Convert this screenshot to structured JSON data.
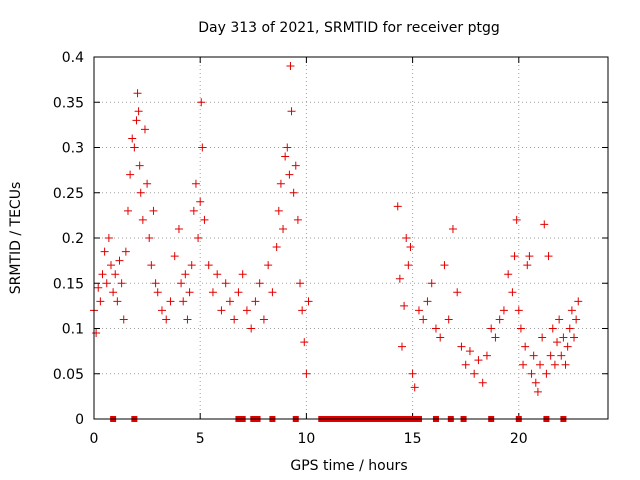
{
  "chart_data": {
    "type": "scatter",
    "title": "Day 313 of 2021, SRMTID for receiver ptgg",
    "xlabel": "GPS time / hours",
    "ylabel": "SRMTID / TECUs",
    "xlim": [
      0,
      24.2
    ],
    "ylim": [
      0,
      0.4
    ],
    "xticks": [
      0,
      5,
      10,
      15,
      20
    ],
    "xtick_labels": [
      "0",
      "5",
      "10",
      "15",
      "20"
    ],
    "yticks": [
      0,
      0.05,
      0.1,
      0.15,
      0.2,
      0.25,
      0.3,
      0.35,
      0.4
    ],
    "ytick_labels": [
      "0",
      "0.05",
      "0.1",
      "0.15",
      "0.2",
      "0.25",
      "0.3",
      "0.35",
      "0.4"
    ],
    "grid": true,
    "marker": "+",
    "color": "#e00000",
    "series": [
      {
        "name": "SRMTID",
        "x": [
          0.0,
          0.1,
          0.2,
          0.3,
          0.4,
          0.5,
          0.6,
          0.7,
          0.8,
          0.9,
          1.0,
          1.1,
          1.2,
          1.3,
          1.4,
          1.5,
          1.6,
          1.7,
          1.8,
          1.9,
          2.0,
          2.05,
          2.1,
          2.15,
          2.2,
          2.3,
          2.4,
          2.5,
          2.6,
          2.7,
          2.8,
          2.9,
          3.0,
          3.2,
          3.4,
          3.6,
          3.8,
          4.0,
          4.1,
          4.2,
          4.3,
          4.4,
          4.5,
          4.6,
          4.7,
          4.8,
          4.9,
          5.0,
          5.05,
          5.1,
          5.2,
          5.4,
          5.6,
          5.8,
          6.0,
          6.2,
          6.4,
          6.6,
          6.8,
          7.0,
          7.2,
          7.4,
          7.6,
          7.8,
          8.0,
          8.2,
          8.4,
          8.6,
          8.7,
          8.8,
          8.9,
          9.0,
          9.1,
          9.2,
          9.25,
          9.3,
          9.4,
          9.5,
          9.6,
          9.7,
          9.8,
          9.9,
          10.0,
          10.1,
          14.3,
          14.4,
          14.5,
          14.6,
          14.7,
          14.8,
          14.9,
          15.0,
          15.1,
          15.3,
          15.5,
          15.7,
          15.9,
          16.1,
          16.3,
          16.5,
          16.7,
          16.9,
          17.1,
          17.3,
          17.5,
          17.7,
          17.9,
          18.1,
          18.3,
          18.5,
          18.7,
          18.9,
          19.1,
          19.3,
          19.5,
          19.7,
          19.8,
          19.9,
          20.0,
          20.1,
          20.2,
          20.3,
          20.4,
          20.5,
          20.6,
          20.7,
          20.8,
          20.9,
          21.0,
          21.1,
          21.2,
          21.3,
          21.4,
          21.5,
          21.6,
          21.7,
          21.8,
          21.9,
          22.0,
          22.1,
          22.2,
          22.3,
          22.4,
          22.5,
          22.6,
          22.7,
          22.8
        ],
        "y": [
          0.12,
          0.095,
          0.145,
          0.13,
          0.16,
          0.185,
          0.15,
          0.2,
          0.17,
          0.14,
          0.16,
          0.13,
          0.175,
          0.15,
          0.11,
          0.185,
          0.23,
          0.27,
          0.31,
          0.3,
          0.33,
          0.36,
          0.34,
          0.28,
          0.25,
          0.22,
          0.32,
          0.26,
          0.2,
          0.17,
          0.23,
          0.15,
          0.14,
          0.12,
          0.11,
          0.13,
          0.18,
          0.21,
          0.15,
          0.13,
          0.16,
          0.11,
          0.14,
          0.17,
          0.23,
          0.26,
          0.2,
          0.24,
          0.35,
          0.3,
          0.22,
          0.17,
          0.14,
          0.16,
          0.12,
          0.15,
          0.13,
          0.11,
          0.14,
          0.16,
          0.12,
          0.1,
          0.13,
          0.15,
          0.11,
          0.17,
          0.14,
          0.19,
          0.23,
          0.26,
          0.21,
          0.29,
          0.3,
          0.27,
          0.39,
          0.34,
          0.25,
          0.28,
          0.22,
          0.15,
          0.12,
          0.085,
          0.05,
          0.13,
          0.235,
          0.155,
          0.08,
          0.125,
          0.2,
          0.17,
          0.19,
          0.05,
          0.035,
          0.12,
          0.11,
          0.13,
          0.15,
          0.1,
          0.09,
          0.17,
          0.11,
          0.21,
          0.14,
          0.08,
          0.06,
          0.075,
          0.05,
          0.065,
          0.04,
          0.07,
          0.1,
          0.09,
          0.11,
          0.12,
          0.16,
          0.14,
          0.18,
          0.22,
          0.12,
          0.1,
          0.06,
          0.08,
          0.17,
          0.18,
          0.05,
          0.07,
          0.04,
          0.03,
          0.06,
          0.09,
          0.215,
          0.05,
          0.18,
          0.07,
          0.1,
          0.06,
          0.085,
          0.11,
          0.07,
          0.09,
          0.06,
          0.08,
          0.1,
          0.12,
          0.09,
          0.11,
          0.13
        ]
      },
      {
        "name": "zero markers",
        "x": [
          0.9,
          1.9,
          6.8,
          7.0,
          7.5,
          7.7,
          8.4,
          9.5,
          10.7,
          10.9,
          11.1,
          11.3,
          11.5,
          11.7,
          11.9,
          12.1,
          12.3,
          12.5,
          12.7,
          12.9,
          13.1,
          13.3,
          13.5,
          13.7,
          13.9,
          14.1,
          14.3,
          14.5,
          14.7,
          14.9,
          15.1,
          15.3,
          16.1,
          16.8,
          17.4,
          18.7,
          20.0,
          21.3,
          22.1
        ],
        "y": [
          0,
          0,
          0,
          0,
          0,
          0,
          0,
          0,
          0,
          0,
          0,
          0,
          0,
          0,
          0,
          0,
          0,
          0,
          0,
          0,
          0,
          0,
          0,
          0,
          0,
          0,
          0,
          0,
          0,
          0,
          0,
          0,
          0,
          0,
          0,
          0,
          0,
          0,
          0
        ]
      }
    ]
  }
}
